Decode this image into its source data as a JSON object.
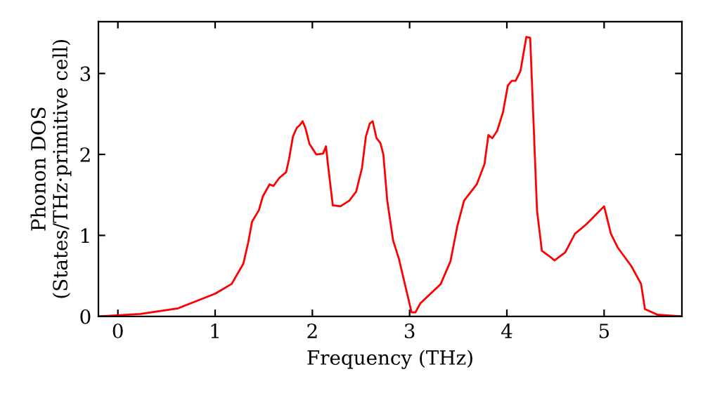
{
  "chart_data": {
    "type": "line",
    "xlabel": "Frequency (THz)",
    "ylabel": "Phonon DOS\n(States/THz·primitive cell)",
    "xlim": [
      -0.2,
      5.8
    ],
    "ylim": [
      0,
      3.64
    ],
    "xticks": [
      0,
      1,
      2,
      3,
      4,
      5
    ],
    "yticks": [
      0,
      1,
      2,
      3
    ],
    "grid": false,
    "legend": false,
    "marker": "none",
    "line_style": "solid",
    "series": [
      {
        "color": "#ff0000",
        "x": [
          -0.2,
          0.23,
          0.62,
          1.0,
          1.17,
          1.29,
          1.34,
          1.38,
          1.45,
          1.49,
          1.56,
          1.6,
          1.66,
          1.73,
          1.76,
          1.8,
          1.84,
          1.87,
          1.9,
          1.93,
          1.97,
          2.04,
          2.11,
          2.14,
          2.16,
          2.21,
          2.29,
          2.38,
          2.45,
          2.51,
          2.55,
          2.59,
          2.62,
          2.66,
          2.7,
          2.73,
          2.77,
          2.83,
          2.89,
          3.02,
          3.06,
          3.11,
          3.32,
          3.42,
          3.49,
          3.56,
          3.69,
          3.77,
          3.81,
          3.85,
          3.9,
          3.96,
          4.01,
          4.05,
          4.09,
          4.14,
          4.2,
          4.24,
          4.31,
          4.36,
          4.43,
          4.49,
          4.6,
          4.7,
          4.82,
          5.0,
          5.07,
          5.14,
          5.28,
          5.38,
          5.42,
          5.55,
          5.8
        ],
        "values": [
          0,
          0.03,
          0.1,
          0.28,
          0.4,
          0.65,
          0.91,
          1.17,
          1.31,
          1.48,
          1.63,
          1.61,
          1.71,
          1.78,
          1.94,
          2.22,
          2.33,
          2.36,
          2.41,
          2.32,
          2.13,
          2.0,
          2.01,
          2.1,
          1.88,
          1.37,
          1.36,
          1.43,
          1.54,
          1.83,
          2.22,
          2.38,
          2.41,
          2.2,
          2.14,
          2.0,
          1.43,
          0.94,
          0.71,
          0.05,
          0.05,
          0.16,
          0.4,
          0.68,
          1.11,
          1.43,
          1.63,
          1.88,
          2.24,
          2.2,
          2.29,
          2.52,
          2.85,
          2.91,
          2.91,
          3.03,
          3.45,
          3.44,
          1.31,
          0.81,
          0.75,
          0.69,
          0.79,
          1.02,
          1.14,
          1.36,
          1.02,
          0.85,
          0.62,
          0.4,
          0.09,
          0.02,
          0
        ]
      }
    ]
  }
}
